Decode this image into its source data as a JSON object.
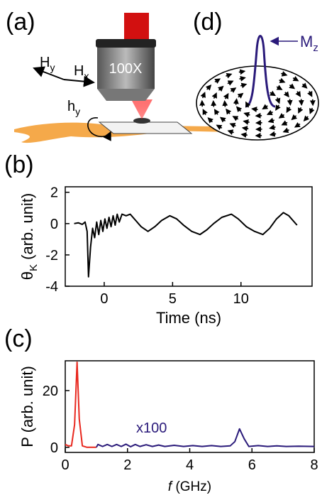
{
  "panels": {
    "a": {
      "label": "(a)",
      "objective": "100X",
      "fields": [
        {
          "main": "H",
          "sub": "y"
        },
        {
          "main": "H",
          "sub": "x"
        },
        {
          "main": "h",
          "sub": "y"
        }
      ]
    },
    "d": {
      "label": "(d)",
      "annotation": {
        "main": "M",
        "sub": "z"
      }
    }
  },
  "chart_data": [
    {
      "type": "line",
      "panel_label": "(b)",
      "x_label": "Time (ns)",
      "y_label": {
        "main": "θ",
        "sub": "K",
        "rest": " (arb. unit)"
      },
      "color": "#000000",
      "x": [
        -2.2,
        -1.9,
        -1.6,
        -1.4,
        -1.25,
        -1.15,
        -1.0,
        -0.85,
        -0.7,
        -0.55,
        -0.4,
        -0.25,
        -0.1,
        0.05,
        0.2,
        0.35,
        0.5,
        0.65,
        0.8,
        0.95,
        1.1,
        1.3,
        1.6,
        1.9,
        2.3,
        2.7,
        3.2,
        3.7,
        4.2,
        4.8,
        5.3,
        5.8,
        6.4,
        7.0,
        7.5,
        8.0,
        8.6,
        9.3,
        9.8,
        10.4,
        11.0,
        11.6,
        12.1,
        12.6,
        13.1,
        13.5,
        14.1
      ],
      "values": [
        0,
        0.05,
        -0.05,
        0.1,
        -0.5,
        -3.4,
        -1.5,
        -0.3,
        -0.9,
        0.1,
        -0.7,
        0.2,
        -0.5,
        0.3,
        -0.3,
        0.4,
        -0.2,
        0.5,
        -0.1,
        0.6,
        0.1,
        0.6,
        0.5,
        0.6,
        0.2,
        -0.2,
        -0.5,
        -0.2,
        0.2,
        0.5,
        0.3,
        -0.1,
        -0.5,
        -0.7,
        -0.4,
        0,
        0.4,
        0.6,
        0.3,
        -0.2,
        -0.5,
        -0.7,
        -0.3,
        0.3,
        0.7,
        0.5,
        -0.1
      ],
      "xlim": [
        -2.85,
        15.2
      ],
      "xticks": [
        0,
        5,
        10
      ],
      "ylim": [
        -4,
        2.35
      ],
      "yticks": [
        2,
        0,
        -2,
        -4
      ]
    },
    {
      "type": "line",
      "panel_label": "(c)",
      "x_label_var": "f",
      "x_label_unit": " (GHz)",
      "y_label": "P (arb. unit)",
      "annotation": "x100",
      "series": [
        {
          "color": "#e8281f",
          "x": [
            0,
            0.1,
            0.2,
            0.3,
            0.38,
            0.45,
            0.55,
            0.7,
            1.0
          ],
          "values": [
            1,
            0.5,
            0.5,
            8,
            30,
            10,
            0.5,
            0,
            0
          ]
        },
        {
          "color": "#2a1a7a",
          "x": [
            1.0,
            1.05,
            1.2,
            1.35,
            1.5,
            1.65,
            1.8,
            1.95,
            2.1,
            2.25,
            2.4,
            2.6,
            2.8,
            3.0,
            3.2,
            3.5,
            3.8,
            4.1,
            4.4,
            4.7,
            5.0,
            5.3,
            5.45,
            5.6,
            5.75,
            5.9,
            6.2,
            6.5,
            6.8,
            7.1,
            7.5,
            8.0
          ],
          "values": [
            0,
            1,
            0.3,
            1,
            0.3,
            1,
            0.3,
            1.1,
            0.2,
            1,
            0.3,
            0.9,
            0.3,
            0.8,
            0.3,
            0.7,
            0.3,
            0.6,
            0.3,
            0.6,
            0.3,
            0.5,
            2,
            6.5,
            3,
            0.3,
            0.6,
            0.3,
            0.5,
            0.3,
            0.4,
            0.3
          ]
        }
      ],
      "xlim": [
        0,
        8
      ],
      "xticks": [
        0,
        2,
        4,
        6,
        8
      ],
      "ylim": [
        -1.8,
        30.5
      ],
      "yticks": [
        0,
        20
      ]
    }
  ]
}
